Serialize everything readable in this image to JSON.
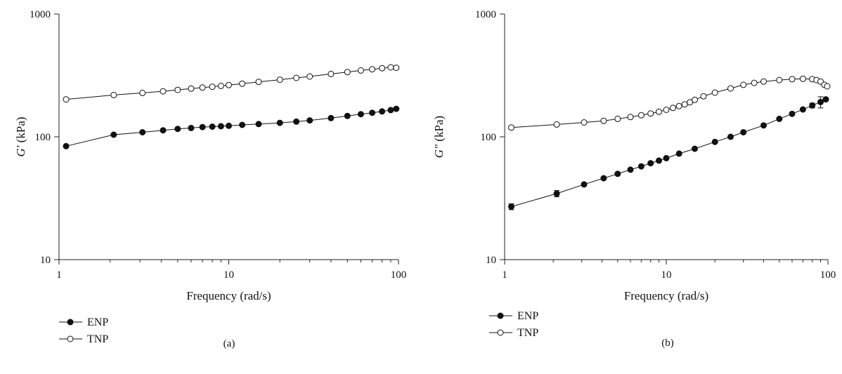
{
  "chart_data": [
    {
      "type": "scatter",
      "panel_label": "(a)",
      "xlabel": "Frequency (rad/s)",
      "ylabel_symbol": "G′",
      "ylabel_unit": "(kPa)",
      "xscale": "log",
      "yscale": "log",
      "xlim": [
        1,
        100
      ],
      "ylim": [
        10,
        1000
      ],
      "x_ticks": [
        "1",
        "10",
        "100"
      ],
      "y_ticks": [
        "10",
        "100",
        "1000"
      ],
      "legend_position": "bottom-left",
      "series": [
        {
          "name": "ENP",
          "marker": "filled-circle",
          "x": [
            1.1,
            2.1,
            3.1,
            4.1,
            5,
            6,
            7,
            8,
            9,
            10,
            12,
            15,
            20,
            25,
            30,
            40,
            50,
            60,
            70,
            80,
            90,
            97
          ],
          "y": [
            84,
            104,
            109,
            113,
            116,
            118,
            120,
            121,
            122,
            123,
            125,
            127,
            130,
            133,
            136,
            142,
            148,
            153,
            157,
            161,
            165,
            169
          ]
        },
        {
          "name": "TNP",
          "marker": "open-circle",
          "x": [
            1.1,
            2.1,
            3.1,
            4.1,
            5,
            6,
            7,
            8,
            9,
            10,
            12,
            15,
            20,
            25,
            30,
            40,
            50,
            60,
            70,
            80,
            90,
            97
          ],
          "y": [
            202,
            219,
            228,
            235,
            241,
            247,
            252,
            256,
            260,
            264,
            271,
            280,
            292,
            302,
            310,
            325,
            337,
            347,
            355,
            362,
            368,
            365
          ]
        }
      ]
    },
    {
      "type": "scatter",
      "panel_label": "(b)",
      "xlabel": "Frequency (rad/s)",
      "ylabel_symbol": "G″",
      "ylabel_unit": "(kPa)",
      "xscale": "log",
      "yscale": "log",
      "xlim": [
        1,
        100
      ],
      "ylim": [
        10,
        1000
      ],
      "x_ticks": [
        "1",
        "10",
        "100"
      ],
      "y_ticks": [
        "10",
        "100",
        "1000"
      ],
      "legend_position": "bottom-left",
      "series": [
        {
          "name": "ENP",
          "marker": "filled-circle",
          "x": [
            1.1,
            2.1,
            3.1,
            4.1,
            5,
            6,
            7,
            8,
            9,
            10,
            12,
            15,
            20,
            25,
            30,
            40,
            50,
            60,
            70,
            80,
            90,
            97
          ],
          "y": [
            27,
            34.5,
            41,
            46,
            50,
            54,
            57.5,
            61,
            64,
            67,
            73,
            80,
            91,
            100,
            109,
            124,
            140,
            154,
            167,
            180,
            192,
            202
          ],
          "error": [
            1.5,
            2,
            1,
            1,
            1,
            1,
            1,
            1,
            1,
            1,
            1,
            1,
            1,
            1,
            1,
            2,
            2,
            3,
            4,
            8,
            20,
            5
          ]
        },
        {
          "name": "TNP",
          "marker": "open-circle",
          "x": [
            1.1,
            2.1,
            3.1,
            4.1,
            5,
            6,
            7,
            8,
            9,
            10,
            11,
            12,
            13,
            14,
            15,
            17,
            20,
            25,
            30,
            35,
            40,
            50,
            60,
            70,
            80,
            85,
            90,
            95,
            99
          ],
          "y": [
            119,
            126,
            131,
            135,
            140,
            145,
            150,
            155,
            160,
            166,
            172,
            178,
            184,
            191,
            200,
            214,
            229,
            248,
            265,
            275,
            282,
            290,
            295,
            297,
            295,
            290,
            282,
            265,
            258
          ]
        }
      ]
    }
  ]
}
